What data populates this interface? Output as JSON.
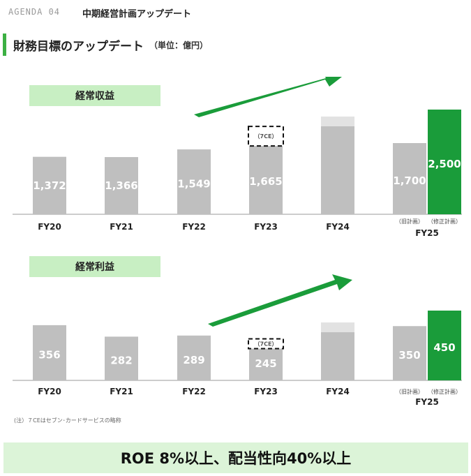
{
  "header": {
    "agenda": "AGENDA 04",
    "title": "中期経営計画アップデート"
  },
  "section": {
    "title": "財務目標のアップデート",
    "unit": "（単位：億円）"
  },
  "labels": {
    "old_plan": "（旧計画）",
    "new_plan": "（修正計画）",
    "fy25": "FY25",
    "ce": "（7CE）"
  },
  "colors": {
    "bar": "#bfbfbf",
    "highlight": "#1a9c3a",
    "arrow": "#1a9c3a",
    "label_bg": "#c8efc3"
  },
  "chart_data": [
    {
      "type": "bar",
      "title": "経常収益",
      "categories": [
        "FY20",
        "FY21",
        "FY22",
        "FY23",
        "FY24",
        "FY25 旧計画",
        "FY25 修正計画"
      ],
      "values": [
        1372,
        1366,
        1549,
        1665,
        null,
        1700,
        2500
      ],
      "value_labels": [
        "1,372",
        "1,366",
        "1,549",
        "1,665",
        "",
        "1,700",
        "2,500"
      ],
      "ylim": [
        0,
        2700
      ],
      "grid": false,
      "annotations": [
        "FY23 includes (7CE) segment",
        "FY24 bar shown faded (forecast)",
        "Upward arrow"
      ]
    },
    {
      "type": "bar",
      "title": "経常利益",
      "categories": [
        "FY20",
        "FY21",
        "FY22",
        "FY23",
        "FY24",
        "FY25 旧計画",
        "FY25 修正計画"
      ],
      "values": [
        356,
        282,
        289,
        245,
        null,
        350,
        450
      ],
      "value_labels": [
        "356",
        "282",
        "289",
        "245",
        "",
        "350",
        "450"
      ],
      "ylim": [
        0,
        510
      ],
      "grid": false,
      "annotations": [
        "FY23 includes (7CE) segment",
        "FY24 bar shown faded (forecast)",
        "Upward arrow"
      ]
    }
  ],
  "note": "(注）７CEはセブン･カードサービスの略称",
  "footer": {
    "roe": "ROE 8%以上、配当性向40%以上"
  }
}
